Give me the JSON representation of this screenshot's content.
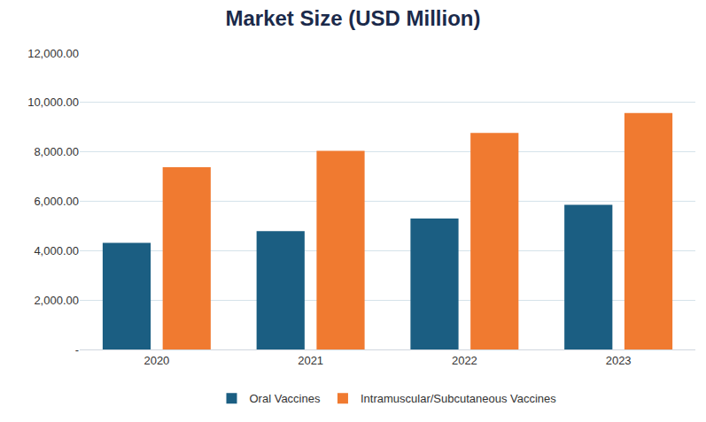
{
  "chart_data": {
    "type": "bar",
    "title": "Market Size (USD Million)",
    "categories": [
      "2020",
      "2021",
      "2022",
      "2023"
    ],
    "series": [
      {
        "name": "Oral Vaccines",
        "color": "#1b5e82",
        "values": [
          4320,
          4790,
          5300,
          5860
        ]
      },
      {
        "name": "Intramuscular/Subcutaneous Vaccines",
        "color": "#f07a30",
        "values": [
          7380,
          8040,
          8770,
          9570
        ]
      }
    ],
    "ylim": [
      0,
      12000
    ],
    "yticks": [
      {
        "value": 0,
        "label": "-"
      },
      {
        "value": 2000,
        "label": "2,000.00"
      },
      {
        "value": 4000,
        "label": "4,000.00"
      },
      {
        "value": 6000,
        "label": "6,000.00"
      },
      {
        "value": 8000,
        "label": "8,000.00"
      },
      {
        "value": 10000,
        "label": "10,000.00"
      },
      {
        "value": 12000,
        "label": "12,000.00"
      }
    ],
    "grid": true,
    "legend": "bottom"
  }
}
